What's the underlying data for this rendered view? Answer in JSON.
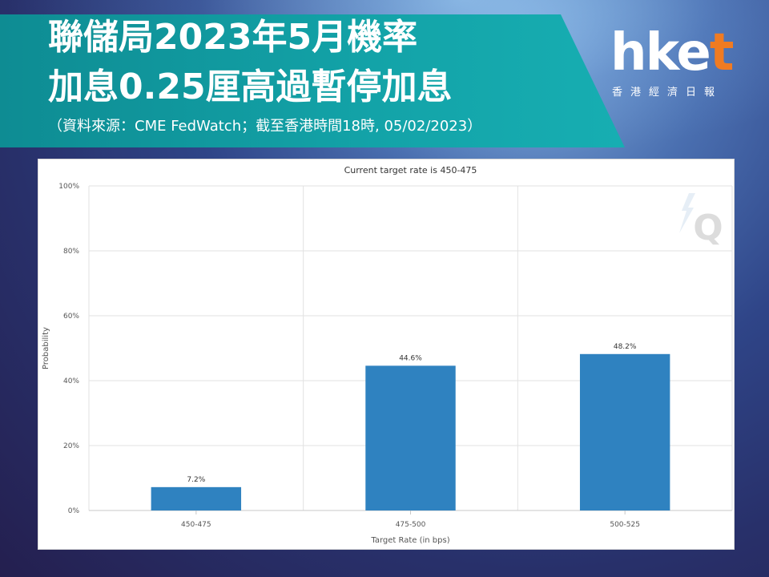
{
  "header": {
    "title_line1": "聯儲局2023年5月機率",
    "title_line2": "加息0.25厘高過暫停加息",
    "source": "（資料來源：CME FedWatch；截至香港時間18時, 05/02/2023）"
  },
  "logo": {
    "word_main": "hke",
    "word_accent": "t",
    "subtitle": "香港經濟日報",
    "accent_color": "#f07b22"
  },
  "chart_data": {
    "type": "bar",
    "title": "Current target rate is 450-475",
    "xlabel": "Target Rate (in bps)",
    "ylabel": "Probability",
    "categories": [
      "450-475",
      "475-500",
      "500-525"
    ],
    "values": [
      7.2,
      44.6,
      48.2
    ],
    "data_labels": [
      "7.2%",
      "44.6%",
      "48.2%"
    ],
    "ylim": [
      0,
      100
    ],
    "yticks": [
      "0%",
      "20%",
      "40%",
      "60%",
      "80%",
      "100%"
    ],
    "ytick_values": [
      0,
      20,
      40,
      60,
      80,
      100
    ],
    "grid": true,
    "bar_color": "#2f82c0",
    "watermark": "Q"
  }
}
